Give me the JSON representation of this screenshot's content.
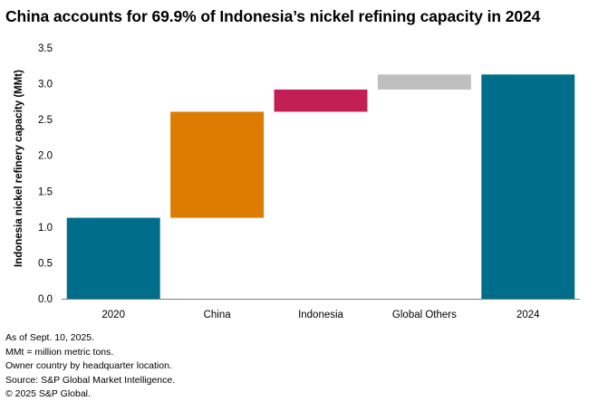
{
  "title": "China accounts for 69.9% of Indonesia’s nickel refining capacity in 2024",
  "notes": [
    "As of Sept. 10, 2025.",
    "MMt = million metric tons.",
    "Owner country by headquarter location.",
    "Source: S&P Global Market Intelligence.",
    "© 2025 S&P Global."
  ],
  "chart_data": {
    "type": "bar",
    "subtype": "waterfall",
    "categories": [
      "2020",
      "China",
      "Indonesia",
      "Global Others",
      "2024"
    ],
    "bars": [
      {
        "category": "2020",
        "start": 0,
        "end": 1.13,
        "kind": "total",
        "color": "#006e8a"
      },
      {
        "category": "China",
        "start": 1.13,
        "end": 2.61,
        "kind": "increase",
        "color": "#dd7a00"
      },
      {
        "category": "Indonesia",
        "start": 2.61,
        "end": 2.92,
        "kind": "increase",
        "color": "#c21f55"
      },
      {
        "category": "Global Others",
        "start": 2.92,
        "end": 3.13,
        "kind": "increase",
        "color": "#bfbfbf"
      },
      {
        "category": "2024",
        "start": 0,
        "end": 3.13,
        "kind": "total",
        "color": "#006e8a"
      }
    ],
    "xlabel": "",
    "ylabel": "Indonesia nickel refinery capacity (MMt)",
    "ylim": [
      0,
      3.5
    ],
    "yticks": [
      "0.0",
      "0.5",
      "1.0",
      "1.5",
      "2.0",
      "2.5",
      "3.0",
      "3.5"
    ],
    "grid": false,
    "legend": "none"
  }
}
